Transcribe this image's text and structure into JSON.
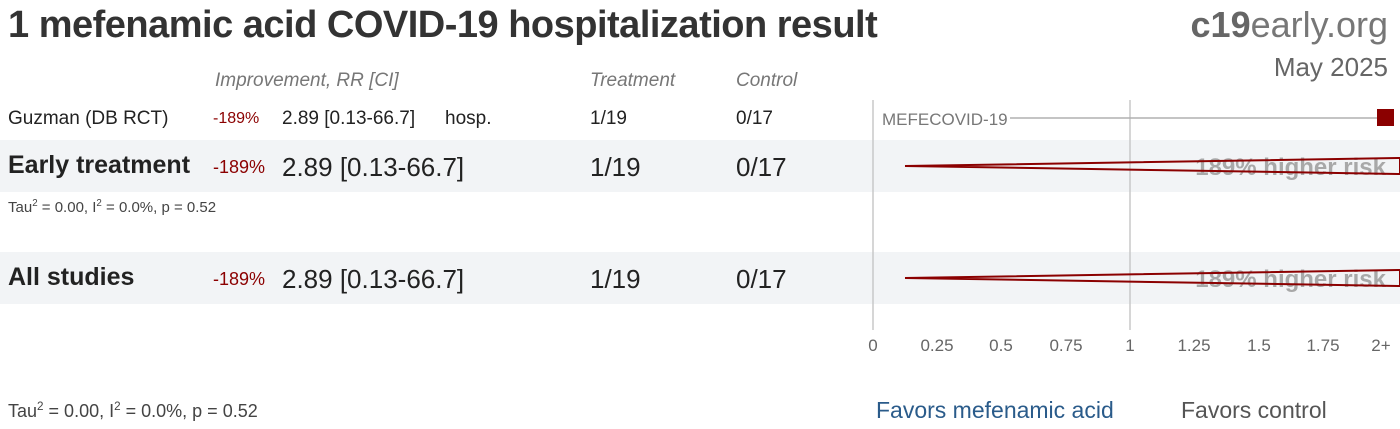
{
  "header": {
    "title": "1 mefenamic acid COVID-19 hospitalization result",
    "brand_c19": "c19",
    "brand_rest": "early.org",
    "date": "May 2025"
  },
  "columns": {
    "improvement": "Improvement, RR [CI]",
    "treatment": "Treatment",
    "control": "Control"
  },
  "rows": {
    "study": {
      "name": "Guzman (DB RCT)",
      "improvement": "-189%",
      "rr_ci": "2.89 [0.13-66.7]",
      "outcome": "hosp.",
      "treatment": "1/19",
      "control": "0/17",
      "plot_label": "MEFECOVID-19"
    },
    "early": {
      "name": "Early treatment",
      "improvement": "-189%",
      "rr_ci": "2.89 [0.13-66.7]",
      "treatment": "1/19",
      "control": "0/17",
      "plot_label": "189% higher risk",
      "tau_prefix": "Tau",
      "tau_rest": " = 0.00, I",
      "i2_rest": " = 0.0%, p = 0.52",
      "sup": "2"
    },
    "all": {
      "name": "All studies",
      "improvement": "-189%",
      "rr_ci": "2.89 [0.13-66.7]",
      "treatment": "1/19",
      "control": "0/17",
      "plot_label": "189% higher risk"
    }
  },
  "footer": {
    "tau_prefix": "Tau",
    "tau_rest": " = 0.00, I",
    "i2_rest": " = 0.0%, p = 0.52",
    "sup": "2",
    "favors_left": "Favors mefenamic acid",
    "favors_right": "Favors control"
  },
  "colors": {
    "accent": "#8b0000",
    "favors_left": "#2a5b8a",
    "band": "#f2f4f6"
  },
  "chart_data": {
    "type": "forest",
    "x_ticks": [
      "0",
      "0.25",
      "0.5",
      "0.75",
      "1",
      "1.25",
      "1.5",
      "1.75",
      "2+"
    ],
    "xlim": [
      0,
      2
    ],
    "series": [
      {
        "name": "MEFECOVID-19",
        "rr": 2.89,
        "ci": [
          0.13,
          66.7
        ]
      },
      {
        "name": "Early treatment",
        "rr": 2.89,
        "ci": [
          0.13,
          66.7
        ]
      },
      {
        "name": "All studies",
        "rr": 2.89,
        "ci": [
          0.13,
          66.7
        ]
      }
    ]
  }
}
